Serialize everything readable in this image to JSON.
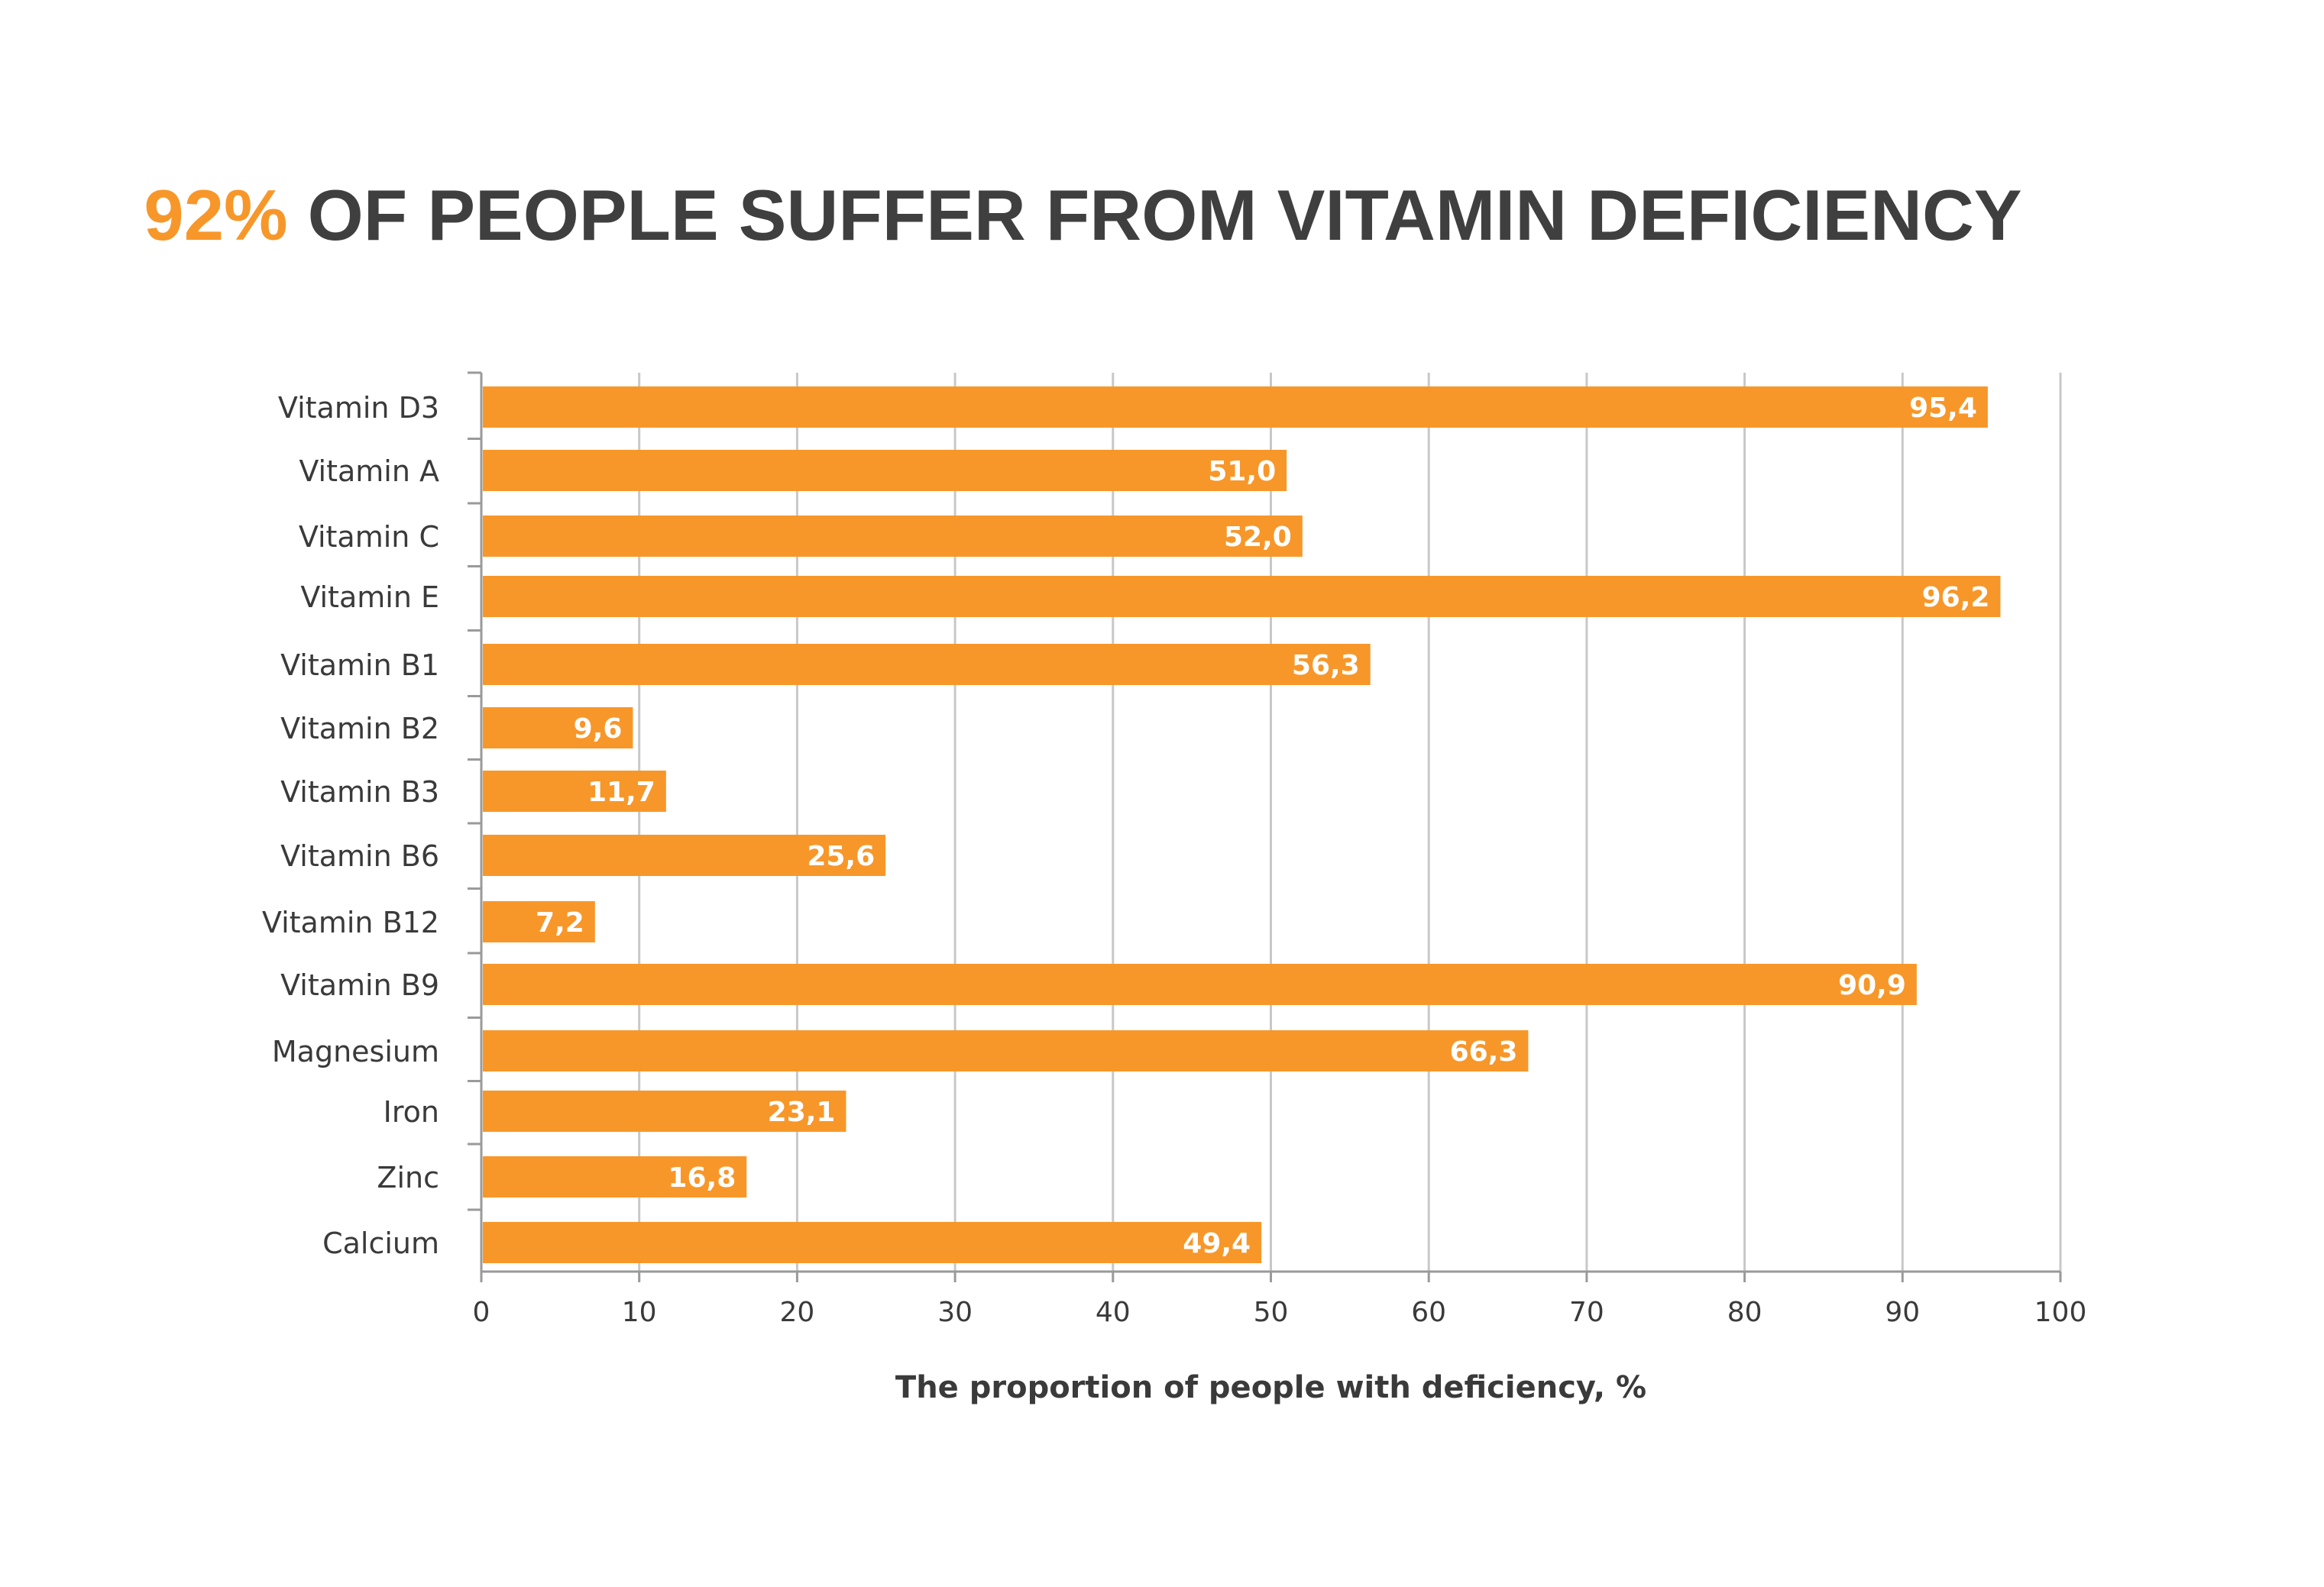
{
  "title": {
    "highlight": "92%",
    "rest": " OF PEOPLE SUFFER FROM VITAMIN DEFICIENCY"
  },
  "colors": {
    "bar": "#f7972a",
    "title_accent": "#f7972a",
    "text": "#3a3a3a",
    "grid": "#c8c8c8",
    "value_label": "#ffffff"
  },
  "chart_data": {
    "type": "bar",
    "orientation": "horizontal",
    "title": "92% OF PEOPLE SUFFER FROM VITAMIN DEFICIENCY",
    "xlabel": "The proportion of people with deficiency, %",
    "ylabel": "",
    "categories": [
      "Vitamin D3",
      "Vitamin A",
      "Vitamin C",
      "Vitamin E",
      "Vitamin B1",
      "Vitamin B2",
      "Vitamin B3",
      "Vitamin B6",
      "Vitamin B12",
      "Vitamin B9",
      "Magnesium",
      "Iron",
      "Zinc",
      "Calcium"
    ],
    "values": [
      95.4,
      51.0,
      52.0,
      96.2,
      56.3,
      9.6,
      11.7,
      25.6,
      7.2,
      90.9,
      66.3,
      23.1,
      16.8,
      49.4
    ],
    "value_labels": [
      "95,4",
      "51,0",
      "52,0",
      "96,2",
      "56,3",
      "9,6",
      "11,7",
      "25,6",
      "7,2",
      "90,9",
      "66,3",
      "23,1",
      "16,8",
      "49,4"
    ],
    "xlim": [
      0,
      100
    ],
    "xticks": [
      0,
      10,
      20,
      30,
      40,
      50,
      60,
      70,
      80,
      90,
      100
    ],
    "grid": true,
    "legend": "none"
  }
}
